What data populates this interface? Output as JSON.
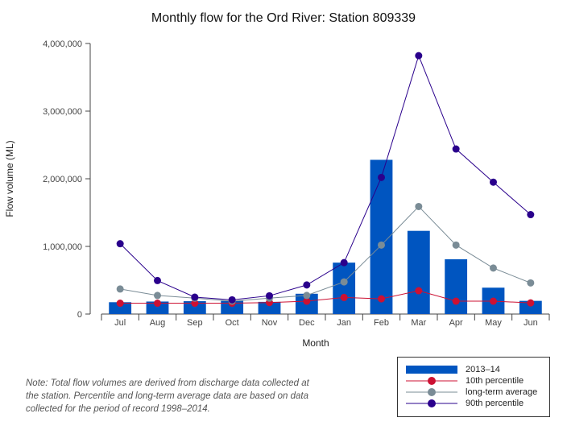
{
  "chart_data": {
    "type": "bar",
    "title": "Monthly flow for the Ord River: Station 809339",
    "xlabel": "Month",
    "ylabel": "Flow volume (ML)",
    "ylim": [
      0,
      4000000
    ],
    "yticks": [
      0,
      1000000,
      2000000,
      3000000,
      4000000
    ],
    "ytick_labels": [
      "0",
      "1,000,000",
      "2,000,000",
      "3,000,000",
      "4,000,000"
    ],
    "categories": [
      "Jul",
      "Aug",
      "Sep",
      "Oct",
      "Nov",
      "Dec",
      "Jan",
      "Feb",
      "Mar",
      "Apr",
      "May",
      "Jun"
    ],
    "grid": false,
    "legend_position": "bottom-right",
    "series": [
      {
        "name": "2013–14",
        "kind": "bar",
        "color": "#0055c0",
        "values": [
          175000,
          185000,
          190000,
          195000,
          180000,
          300000,
          760000,
          2280000,
          1230000,
          810000,
          390000,
          195000
        ]
      },
      {
        "name": "10th percentile",
        "kind": "line",
        "color": "#cc1133",
        "values": [
          160000,
          160000,
          160000,
          160000,
          170000,
          190000,
          245000,
          225000,
          345000,
          190000,
          190000,
          165000
        ]
      },
      {
        "name": "long-term average",
        "kind": "line",
        "color": "#7a8c96",
        "values": [
          370000,
          275000,
          235000,
          190000,
          235000,
          275000,
          475000,
          1020000,
          1590000,
          1020000,
          680000,
          460000
        ]
      },
      {
        "name": "90th percentile",
        "kind": "line",
        "color": "#2a008c",
        "values": [
          1040000,
          495000,
          250000,
          210000,
          270000,
          430000,
          760000,
          2020000,
          3820000,
          2440000,
          1950000,
          1470000
        ]
      }
    ]
  },
  "note": "Note: Total flow volumes are derived from discharge data collected at the station. Percentile and long-term average data are based on data collected for the period of record 1998–2014."
}
